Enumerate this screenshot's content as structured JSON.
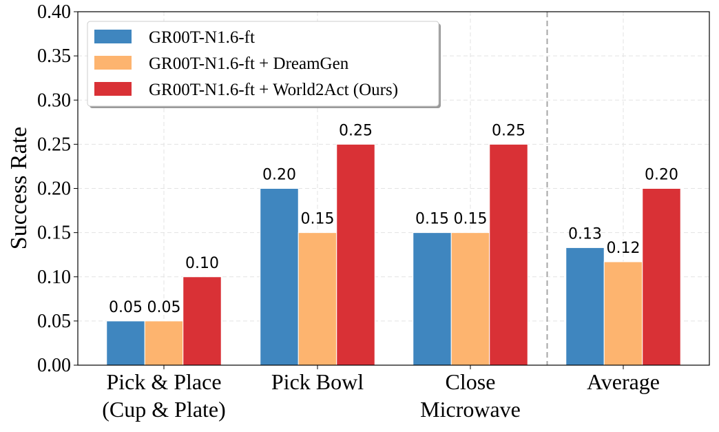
{
  "chart_data": {
    "type": "bar",
    "categories": [
      [
        "Pick & Place",
        "(Cup & Plate)"
      ],
      [
        "Pick Bowl"
      ],
      [
        "Close",
        "Microwave"
      ],
      [
        "Average"
      ]
    ],
    "series": [
      {
        "name": "GR00T-N1.6-ft",
        "values": [
          0.05,
          0.2,
          0.15,
          0.133
        ],
        "labels": [
          "0.05",
          "0.20",
          "0.15",
          "0.13"
        ],
        "color": "#3f86bf"
      },
      {
        "name": "GR00T-N1.6-ft + DreamGen",
        "values": [
          0.05,
          0.15,
          0.15,
          0.117
        ],
        "labels": [
          "0.05",
          "0.15",
          "0.15",
          "0.12"
        ],
        "color": "#fdb46f"
      },
      {
        "name": "GR00T-N1.6-ft + World2Act (Ours)",
        "values": [
          0.1,
          0.25,
          0.25,
          0.2
        ],
        "labels": [
          "0.10",
          "0.25",
          "0.25",
          "0.20"
        ],
        "color": "#d93136"
      }
    ],
    "title": "",
    "xlabel": "",
    "ylabel": "Success Rate",
    "ylim": [
      0,
      0.4
    ],
    "yticks": [
      "0.00",
      "0.05",
      "0.10",
      "0.15",
      "0.20",
      "0.25",
      "0.30",
      "0.35",
      "0.40"
    ],
    "grid": true,
    "legend_position": "top-left",
    "separator_before_last_category": true
  }
}
